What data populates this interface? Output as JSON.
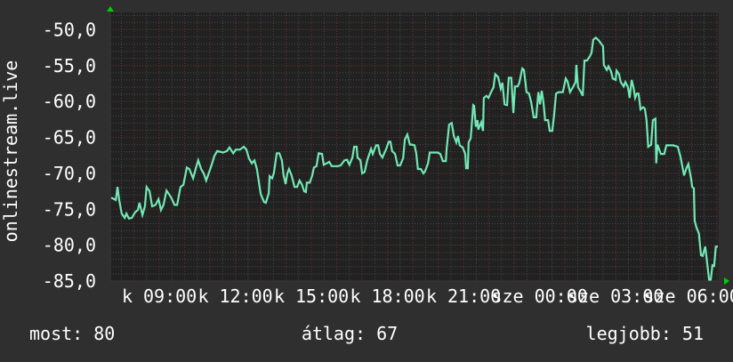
{
  "chart_data": {
    "type": "line",
    "title": "",
    "ylabel": "onlinestream.live",
    "xlabel": "",
    "ylim": [
      -85,
      -47.6
    ],
    "xlim": [
      "k 07:04",
      "sze 07:04"
    ],
    "grid": true,
    "y_ticks": [
      "-50,0",
      "-55,0",
      "-60,0",
      "-65,0",
      "-70,0",
      "-75,0",
      "-80,0",
      "-85,0"
    ],
    "y_tick_values": [
      -50,
      -55,
      -60,
      -65,
      -70,
      -75,
      -80,
      -85
    ],
    "x_ticks": [
      "k 09:00",
      "k 12:00",
      "k 15:00",
      "k 18:00",
      "k 21:00",
      "sze 00:00",
      "sze 03:00",
      "sze 06:00"
    ],
    "x_tick_times": [
      "09:00",
      "12:00",
      "15:00",
      "18:00",
      "21:00",
      "00:00",
      "03:00",
      "06:00"
    ],
    "colors": {
      "background": "#2f2f2f",
      "plot_background": "#212121",
      "line": "#72e8b4",
      "minor_grid": "#4a4a4a",
      "major_grid": "#6e3434",
      "arrows": "#00d000",
      "text": "#ffffff"
    },
    "series": [
      {
        "points": [
          [
            "07:06",
            -73.4
          ],
          [
            "07:17",
            -73.7
          ],
          [
            "07:21",
            -71.9
          ],
          [
            "07:25",
            -73.7
          ],
          [
            "07:31",
            -75.6
          ],
          [
            "07:38",
            -76.2
          ],
          [
            "07:42",
            -75.6
          ],
          [
            "07:48",
            -76.3
          ],
          [
            "07:55",
            -76.2
          ],
          [
            "08:03",
            -75.4
          ],
          [
            "08:09",
            -75.1
          ],
          [
            "08:13",
            -74.1
          ],
          [
            "08:20",
            -75.8
          ],
          [
            "08:26",
            -74.6
          ],
          [
            "08:30",
            -71.9
          ],
          [
            "08:37",
            -72.5
          ],
          [
            "08:43",
            -74.6
          ],
          [
            "08:51",
            -74.4
          ],
          [
            "08:58",
            -73.6
          ],
          [
            "09:04",
            -75.1
          ],
          [
            "09:10",
            -74.4
          ],
          [
            "09:17",
            -72.4
          ],
          [
            "09:23",
            -72.9
          ],
          [
            "09:29",
            -73.5
          ],
          [
            "09:36",
            -74.4
          ],
          [
            "09:42",
            -74.4
          ],
          [
            "09:50",
            -71.9
          ],
          [
            "09:57",
            -71.6
          ],
          [
            "10:05",
            -69.2
          ],
          [
            "10:11",
            -69.4
          ],
          [
            "10:20",
            -70.7
          ],
          [
            "10:26",
            -69.4
          ],
          [
            "10:32",
            -68.2
          ],
          [
            "10:39",
            -69.4
          ],
          [
            "10:45",
            -70.0
          ],
          [
            "10:51",
            -71.0
          ],
          [
            "10:58",
            -69.8
          ],
          [
            "11:04",
            -68.8
          ],
          [
            "11:10",
            -67.6
          ],
          [
            "11:17",
            -66.9
          ],
          [
            "11:31",
            -67.1
          ],
          [
            "11:40",
            -66.9
          ],
          [
            "11:46",
            -66.4
          ],
          [
            "11:55",
            -67.2
          ],
          [
            "12:01",
            -66.7
          ],
          [
            "12:11",
            -66.7
          ],
          [
            "12:20",
            -66.3
          ],
          [
            "12:26",
            -66.7
          ],
          [
            "12:32",
            -67.9
          ],
          [
            "12:39",
            -68.6
          ],
          [
            "12:45",
            -68.2
          ],
          [
            "12:51",
            -69.4
          ],
          [
            "13:00",
            -72.9
          ],
          [
            "13:08",
            -74.0
          ],
          [
            "13:12",
            -74.1
          ],
          [
            "13:19",
            -72.8
          ],
          [
            "13:21",
            -70.4
          ],
          [
            "13:27",
            -70.7
          ],
          [
            "13:31",
            -70.0
          ],
          [
            "13:38",
            -67.2
          ],
          [
            "13:44",
            -67.2
          ],
          [
            "13:50",
            -68.2
          ],
          [
            "13:54",
            -70.3
          ],
          [
            "13:59",
            -71.5
          ],
          [
            "14:03",
            -70.0
          ],
          [
            "14:07",
            -69.4
          ],
          [
            "14:13",
            -70.3
          ],
          [
            "14:20",
            -71.9
          ],
          [
            "14:26",
            -71.9
          ],
          [
            "14:32",
            -71.0
          ],
          [
            "14:37",
            -71.5
          ],
          [
            "14:43",
            -72.5
          ],
          [
            "14:47",
            -72.6
          ],
          [
            "14:49",
            -71.3
          ],
          [
            "14:56",
            -71.3
          ],
          [
            "15:02",
            -70.3
          ],
          [
            "15:06",
            -69.2
          ],
          [
            "15:12",
            -69.0
          ],
          [
            "15:17",
            -67.2
          ],
          [
            "15:25",
            -67.3
          ],
          [
            "15:29",
            -68.8
          ],
          [
            "15:36",
            -68.6
          ],
          [
            "15:42",
            -68.4
          ],
          [
            "15:48",
            -69.0
          ],
          [
            "15:57",
            -69.0
          ],
          [
            "16:03",
            -69.0
          ],
          [
            "16:09",
            -68.9
          ],
          [
            "16:18",
            -68.2
          ],
          [
            "16:24",
            -68.1
          ],
          [
            "16:30",
            -68.8
          ],
          [
            "16:37",
            -67.8
          ],
          [
            "16:41",
            -66.3
          ],
          [
            "16:47",
            -66.3
          ],
          [
            "16:49",
            -67.8
          ],
          [
            "16:56",
            -68.2
          ],
          [
            "17:00",
            -70.0
          ],
          [
            "17:06",
            -69.8
          ],
          [
            "17:12",
            -68.2
          ],
          [
            "17:21",
            -66.6
          ],
          [
            "17:25",
            -67.3
          ],
          [
            "17:33",
            -66.1
          ],
          [
            "17:38",
            -66.1
          ],
          [
            "17:42",
            -67.3
          ],
          [
            "17:48",
            -67.8
          ],
          [
            "17:57",
            -66.6
          ],
          [
            "18:03",
            -65.6
          ],
          [
            "18:07",
            -65.6
          ],
          [
            "18:11",
            -66.9
          ],
          [
            "18:18",
            -67.3
          ],
          [
            "18:24",
            -68.9
          ],
          [
            "18:30",
            -68.9
          ],
          [
            "18:37",
            -67.9
          ],
          [
            "18:41",
            -65.3
          ],
          [
            "18:47",
            -64.6
          ],
          [
            "18:53",
            -66.0
          ],
          [
            "18:58",
            -66.0
          ],
          [
            "19:04",
            -66.1
          ],
          [
            "19:08",
            -67.2
          ],
          [
            "19:12",
            -69.4
          ],
          [
            "19:19",
            -69.4
          ],
          [
            "19:25",
            -70.0
          ],
          [
            "19:29",
            -69.7
          ],
          [
            "19:36",
            -68.6
          ],
          [
            "19:40",
            -67.1
          ],
          [
            "19:50",
            -67.1
          ],
          [
            "19:59",
            -67.1
          ],
          [
            "20:05",
            -67.3
          ],
          [
            "20:11",
            -68.3
          ],
          [
            "20:18",
            -68.3
          ],
          [
            "20:20",
            -66.6
          ],
          [
            "20:26",
            -63.2
          ],
          [
            "20:32",
            -63.0
          ],
          [
            "20:37",
            -64.8
          ],
          [
            "20:43",
            -65.7
          ],
          [
            "20:47",
            -64.8
          ],
          [
            "20:51",
            -66.1
          ],
          [
            "20:58",
            -66.4
          ],
          [
            "21:04",
            -67.3
          ],
          [
            "21:06",
            -69.3
          ],
          [
            "21:10",
            -69.3
          ],
          [
            "21:12",
            -65.7
          ],
          [
            "21:17",
            -65.1
          ],
          [
            "21:23",
            -60.5
          ],
          [
            "21:25",
            -60.6
          ],
          [
            "21:29",
            -63.5
          ],
          [
            "21:33",
            -62.6
          ],
          [
            "21:35",
            -63.9
          ],
          [
            "21:42",
            -62.9
          ],
          [
            "21:46",
            -64.1
          ],
          [
            "21:48",
            -59.5
          ],
          [
            "21:54",
            -59.2
          ],
          [
            "21:59",
            -59.5
          ],
          [
            "22:05",
            -58.7
          ],
          [
            "22:11",
            -58.0
          ],
          [
            "22:15",
            -56.2
          ],
          [
            "22:22",
            -56.6
          ],
          [
            "22:28",
            -58.2
          ],
          [
            "22:32",
            -57.4
          ],
          [
            "22:37",
            -60.4
          ],
          [
            "22:43",
            -60.5
          ],
          [
            "22:47",
            -56.7
          ],
          [
            "22:53",
            -56.7
          ],
          [
            "22:58",
            -61.6
          ],
          [
            "23:02",
            -57.9
          ],
          [
            "23:08",
            -57.9
          ],
          [
            "23:12",
            -57.4
          ],
          [
            "23:19",
            -55.4
          ],
          [
            "23:23",
            -55.6
          ],
          [
            "23:29",
            -58.7
          ],
          [
            "23:35",
            -58.9
          ],
          [
            "23:40",
            -60.1
          ],
          [
            "23:46",
            -62.2
          ],
          [
            "23:52",
            -62.2
          ],
          [
            "23:57",
            -58.7
          ],
          [
            "00:01",
            -60.4
          ],
          [
            "00:05",
            -58.5
          ],
          [
            "00:09",
            -60.1
          ],
          [
            "00:13",
            -62.6
          ],
          [
            "00:20",
            -62.6
          ],
          [
            "00:24",
            -64.1
          ],
          [
            "00:30",
            -64.1
          ],
          [
            "00:34",
            -62.0
          ],
          [
            "00:39",
            -58.9
          ],
          [
            "00:45",
            -58.7
          ],
          [
            "00:55",
            -58.7
          ],
          [
            "01:02",
            -56.8
          ],
          [
            "01:06",
            -57.2
          ],
          [
            "01:12",
            -58.7
          ],
          [
            "01:19",
            -58.0
          ],
          [
            "01:25",
            -57.3
          ],
          [
            "01:27",
            -54.9
          ],
          [
            "01:31",
            -58.0
          ],
          [
            "01:38",
            -58.7
          ],
          [
            "01:42",
            -59.2
          ],
          [
            "01:46",
            -54.3
          ],
          [
            "01:52",
            -54.3
          ],
          [
            "01:59",
            -53.7
          ],
          [
            "02:03",
            -53.2
          ],
          [
            "02:07",
            -51.4
          ],
          [
            "02:13",
            -51.1
          ],
          [
            "02:20",
            -51.5
          ],
          [
            "02:26",
            -52.0
          ],
          [
            "02:30",
            -52.3
          ],
          [
            "02:32",
            -54.9
          ],
          [
            "02:39",
            -55.6
          ],
          [
            "02:43",
            -55.1
          ],
          [
            "02:49",
            -55.8
          ],
          [
            "02:53",
            -56.8
          ],
          [
            "03:00",
            -57.0
          ],
          [
            "03:02",
            -55.7
          ],
          [
            "03:08",
            -56.2
          ],
          [
            "03:12",
            -57.3
          ],
          [
            "03:19",
            -57.9
          ],
          [
            "03:23",
            -57.3
          ],
          [
            "03:29",
            -58.0
          ],
          [
            "03:33",
            -59.5
          ],
          [
            "03:38",
            -57.0
          ],
          [
            "03:42",
            -58.0
          ],
          [
            "03:46",
            -59.5
          ],
          [
            "03:50",
            -58.9
          ],
          [
            "03:54",
            -58.9
          ],
          [
            "03:59",
            -61.1
          ],
          [
            "04:05",
            -60.8
          ],
          [
            "04:09",
            -61.0
          ],
          [
            "04:13",
            -62.6
          ],
          [
            "04:17",
            -66.3
          ],
          [
            "04:24",
            -66.0
          ],
          [
            "04:28",
            -62.6
          ],
          [
            "04:34",
            -62.4
          ],
          [
            "04:36",
            -68.6
          ],
          [
            "04:39",
            -66.0
          ],
          [
            "04:47",
            -67.3
          ],
          [
            "04:55",
            -67.3
          ],
          [
            "05:00",
            -66.1
          ],
          [
            "05:16",
            -66.1
          ],
          [
            "05:27",
            -66.3
          ],
          [
            "05:33",
            -67.6
          ],
          [
            "05:37",
            -68.8
          ],
          [
            "05:42",
            -70.3
          ],
          [
            "05:48",
            -69.2
          ],
          [
            "05:52",
            -68.7
          ],
          [
            "05:59",
            -70.9
          ],
          [
            "06:01",
            -71.9
          ],
          [
            "06:05",
            -72.1
          ],
          [
            "06:07",
            -76.6
          ],
          [
            "06:11",
            -77.5
          ],
          [
            "06:17",
            -78.4
          ],
          [
            "06:22",
            -81.4
          ],
          [
            "06:26",
            -81.5
          ],
          [
            "06:32",
            -80.2
          ],
          [
            "06:36",
            -82.2
          ],
          [
            "06:41",
            -84.8
          ],
          [
            "06:45",
            -84.8
          ],
          [
            "06:49",
            -82.8
          ],
          [
            "06:53",
            -82.9
          ],
          [
            "06:57",
            -80.2
          ],
          [
            "07:02",
            -80.2
          ]
        ]
      }
    ],
    "legend": {
      "current": "most: 80",
      "average": "átlag: 67",
      "best": "legjobb: 51"
    }
  }
}
